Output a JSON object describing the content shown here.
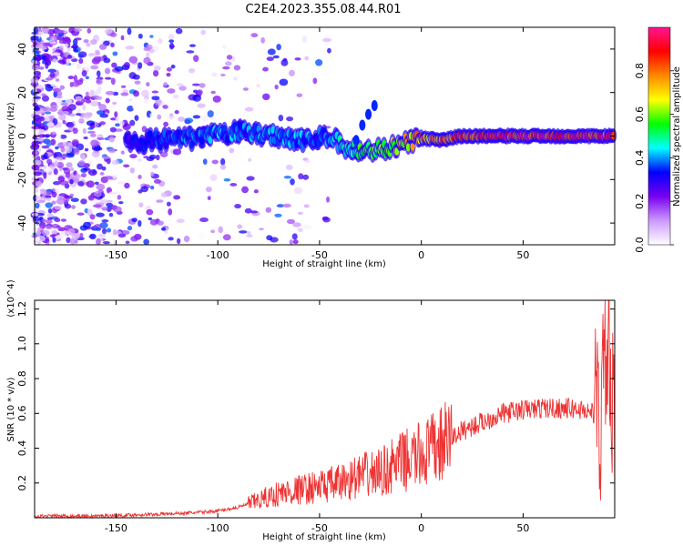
{
  "title": "C2E4.2023.355.08.44.R01",
  "chart_data": [
    {
      "type": "heatmap",
      "xlabel": "Height of straight line (km)",
      "ylabel": "Frequency (Hz)",
      "xlim": [
        -190,
        95
      ],
      "ylim": [
        -50,
        50
      ],
      "xticks": [
        -150,
        -100,
        -50,
        0,
        50
      ],
      "yticks": [
        -40,
        -20,
        0,
        20,
        40
      ],
      "colorbar": {
        "label": "Normalized spectral amplitude",
        "range": [
          0,
          1
        ],
        "ticks": [
          "0.0",
          "0.2",
          "0.4",
          "0.6",
          "0.8"
        ],
        "colors": [
          "#ffffff",
          "#cc99ff",
          "#7700ee",
          "#0000ff",
          "#00ffff",
          "#00ff00",
          "#ffff00",
          "#ff8800",
          "#ff0000",
          "#ff1493"
        ]
      },
      "ridge": {
        "x": [
          -145,
          -130,
          -110,
          -90,
          -70,
          -55,
          -45,
          -38,
          -30,
          -20,
          -10,
          0,
          10,
          20,
          40,
          60,
          80,
          95
        ],
        "freq": [
          -3,
          -2,
          -1,
          2,
          0,
          -2,
          0,
          -5,
          -7,
          -6,
          -4,
          -1,
          -2,
          0,
          0,
          0,
          0,
          0
        ],
        "amplitude": [
          0.3,
          0.35,
          0.4,
          0.4,
          0.4,
          0.4,
          0.4,
          0.5,
          0.55,
          0.6,
          0.7,
          0.8,
          0.8,
          0.9,
          0.95,
          0.95,
          0.95,
          0.9
        ]
      },
      "branch": {
        "x": [
          -32,
          -29,
          -26,
          -23
        ],
        "freq": [
          -2,
          5,
          10,
          14
        ]
      }
    },
    {
      "type": "line",
      "xlabel": "Height of straight line (km)",
      "ylabel": "SNR (10 * v/v)",
      "y_multiplier": "(x10^4)",
      "xlim": [
        -190,
        95
      ],
      "ylim": [
        0,
        1.25
      ],
      "xticks": [
        -150,
        -100,
        -50,
        0,
        50
      ],
      "yticks": [
        "0.2",
        "0.4",
        "0.6",
        "0.8",
        "1.0",
        "1.2"
      ],
      "color": "#ee3333",
      "series": [
        {
          "x": [
            -190,
            -160,
            -130,
            -110,
            -100,
            -90,
            -80,
            -70,
            -60,
            -50,
            -40,
            -30,
            -20,
            -10,
            0,
            10,
            20,
            30,
            40,
            50,
            60,
            70,
            80,
            85,
            88,
            90,
            92,
            95
          ],
          "values": [
            0.01,
            0.01,
            0.02,
            0.03,
            0.04,
            0.06,
            0.1,
            0.14,
            0.16,
            0.18,
            0.2,
            0.24,
            0.26,
            0.32,
            0.36,
            0.42,
            0.5,
            0.55,
            0.6,
            0.62,
            0.63,
            0.63,
            0.62,
            0.6,
            0.55,
            0.9,
            1.0,
            0.3
          ]
        }
      ]
    }
  ]
}
